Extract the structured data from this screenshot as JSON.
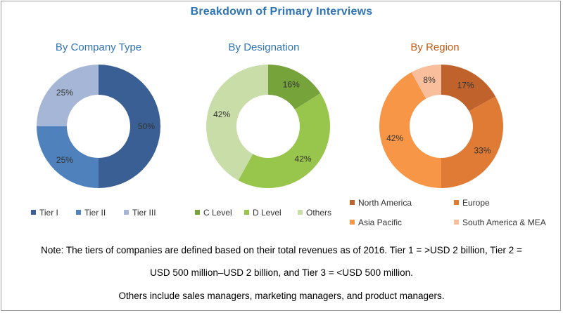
{
  "title": "Breakdown of Primary Interviews",
  "colors": {
    "title": "#2e74b5",
    "chart_title": "#2e74b5",
    "region_title": "#c55a11",
    "label_text": "#333333"
  },
  "chart_data": [
    {
      "type": "pie",
      "style": "donut",
      "title": "By Company Type",
      "slices": [
        {
          "label": "Tier I",
          "value": 50,
          "display": "50%",
          "color": "#3a5f94"
        },
        {
          "label": "Tier II",
          "value": 25,
          "display": "25%",
          "color": "#4f81bd"
        },
        {
          "label": "Tier III",
          "value": 25,
          "display": "25%",
          "color": "#a6b6d6"
        }
      ]
    },
    {
      "type": "pie",
      "style": "donut",
      "title": "By Designation",
      "slices": [
        {
          "label": "C Level",
          "value": 16,
          "display": "16%",
          "color": "#76a33a"
        },
        {
          "label": "D Level",
          "value": 42,
          "display": "42%",
          "color": "#98c64c"
        },
        {
          "label": "Others",
          "value": 42,
          "display": "42%",
          "color": "#c8dda8"
        }
      ]
    },
    {
      "type": "pie",
      "style": "donut",
      "title": "By Region",
      "slices": [
        {
          "label": "North America",
          "value": 17,
          "display": "17%",
          "color": "#c0622b"
        },
        {
          "label": "Europe",
          "value": 33,
          "display": "33%",
          "color": "#e07b36"
        },
        {
          "label": "Asia Pacific",
          "value": 42,
          "display": "42%",
          "color": "#f79646"
        },
        {
          "label": "South America & MEA",
          "value": 8,
          "display": "8%",
          "color": "#f9be9c"
        }
      ]
    }
  ],
  "notes": {
    "line1": "Note: The tiers of companies are defined based on their total revenues as of 2016. Tier 1 = >USD 2 billion, Tier 2 =",
    "line2": "USD 500 million–USD 2 billion, and Tier 3 = <USD 500 million.",
    "line3": "Others include sales managers, marketing managers, and product managers."
  }
}
